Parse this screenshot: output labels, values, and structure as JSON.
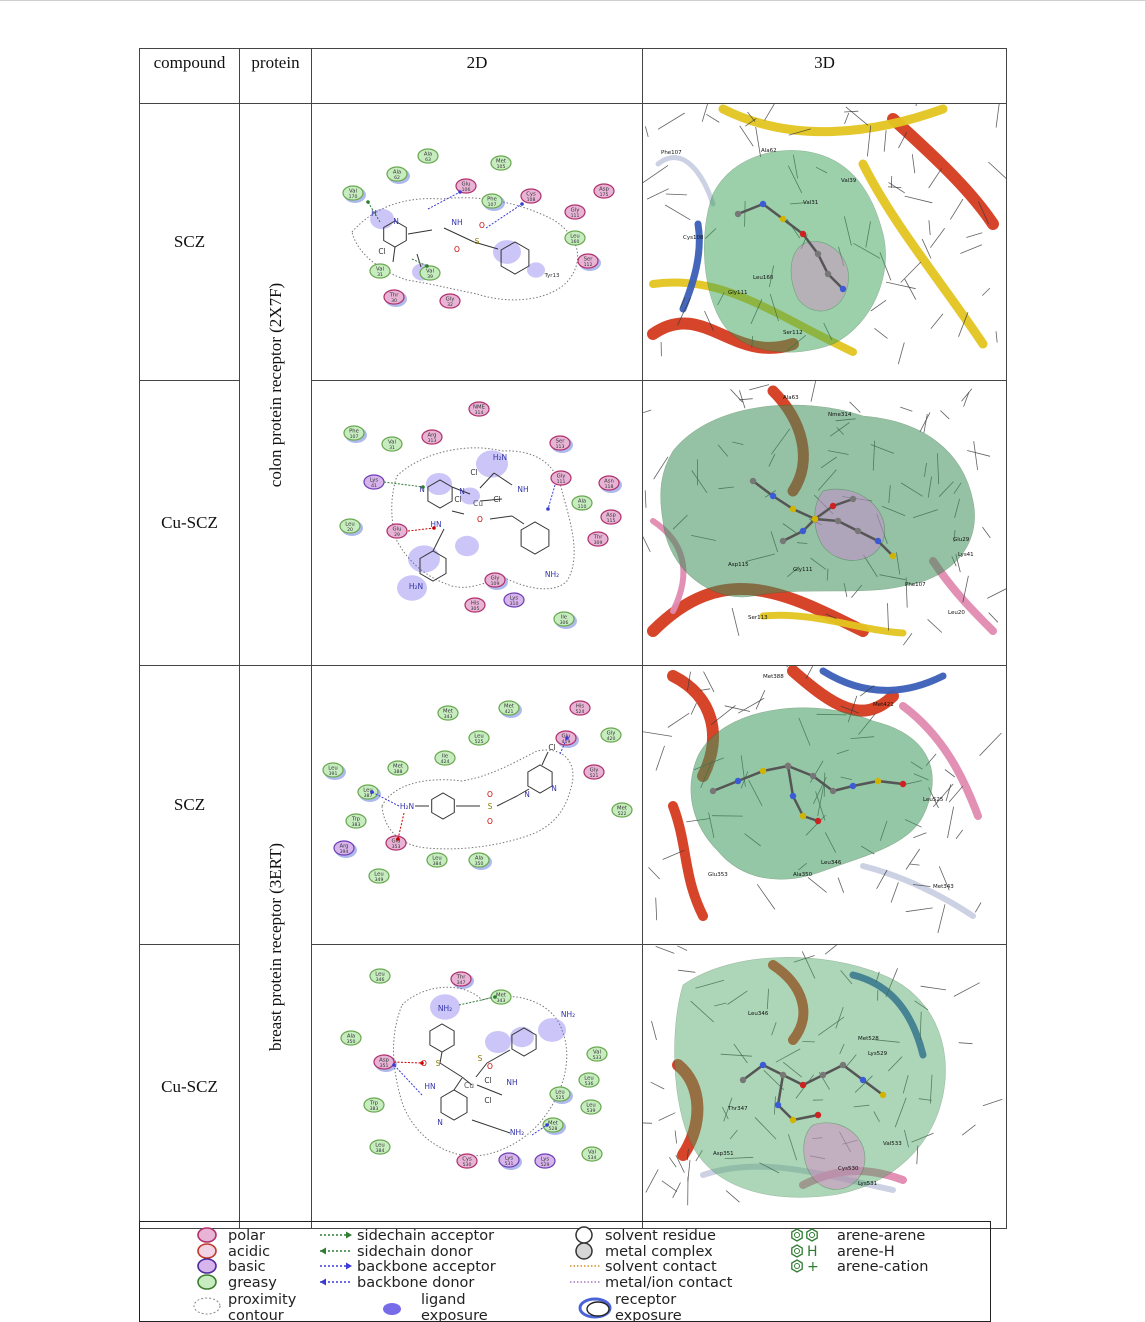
{
  "table": {
    "headers": {
      "compound": "compound",
      "protein": "protein",
      "d2": "2D",
      "d3": "3D"
    },
    "groups": [
      {
        "protein": "colon protein receptor  (2X7F)",
        "rows": [
          {
            "compound": "SCZ"
          },
          {
            "compound": "Cu-SCZ"
          }
        ]
      },
      {
        "protein": "breast protein receptor (3ERT)",
        "rows": [
          {
            "compound": "SCZ"
          },
          {
            "compound": "Cu-SCZ"
          }
        ]
      }
    ]
  },
  "diagrams": {
    "colon_scz": {
      "residues": [
        {
          "n": "Ala",
          "d": "63",
          "c": "#c6ecc0"
        },
        {
          "n": "Ala",
          "d": "62",
          "c": "#c6ecc0"
        },
        {
          "n": "Met",
          "d": "105",
          "c": "#c6ecc0"
        },
        {
          "n": "Glu",
          "d": "106",
          "c": "#e7b4d6"
        },
        {
          "n": "Phe",
          "d": "107",
          "c": "#c6ecc0"
        },
        {
          "n": "Cys",
          "d": "108",
          "c": "#e7b4d6"
        },
        {
          "n": "Asp",
          "d": "175",
          "c": "#e7b4d6"
        },
        {
          "n": "Val",
          "d": "170",
          "c": "#c6ecc0"
        },
        {
          "n": "Gly",
          "d": "111",
          "c": "#e7b4d6"
        },
        {
          "n": "Leu",
          "d": "160",
          "c": "#c6ecc0"
        },
        {
          "n": "Ser",
          "d": "112",
          "c": "#e7b4d6"
        },
        {
          "n": "Val",
          "d": "31",
          "c": "#c6ecc0"
        },
        {
          "n": "Val",
          "d": "39",
          "c": "#c6ecc0"
        },
        {
          "n": "Thr",
          "d": "30",
          "c": "#e7b4d6"
        },
        {
          "n": "Gly",
          "d": "32",
          "c": "#e7b4d6"
        }
      ],
      "atoms": {
        "h1": "H",
        "n1": "N",
        "cl": "Cl",
        "nh": "NH",
        "s": "S",
        "o": "O",
        "tail": "Tyr13"
      }
    },
    "colon_cuscz": {
      "residues": [
        {
          "n": "NME",
          "d": "314",
          "c": "#e7b4d6"
        },
        {
          "n": "Phe",
          "d": "107",
          "c": "#c6ecc0"
        },
        {
          "n": "Arg",
          "d": "313",
          "c": "#e7b4d6"
        },
        {
          "n": "Val",
          "d": "31",
          "c": "#c6ecc0"
        },
        {
          "n": "Ser",
          "d": "113",
          "c": "#e7b4d6"
        },
        {
          "n": "Lys",
          "d": "41",
          "c": "#d8b4ec"
        },
        {
          "n": "Gly",
          "d": "111",
          "c": "#e7b4d6"
        },
        {
          "n": "Asn",
          "d": "118",
          "c": "#e7b4d6"
        },
        {
          "n": "Ala",
          "d": "110",
          "c": "#c6ecc0"
        },
        {
          "n": "Asp",
          "d": "115",
          "c": "#e7b4d6"
        },
        {
          "n": "Leu",
          "d": "20",
          "c": "#c6ecc0"
        },
        {
          "n": "Glu",
          "d": "29",
          "c": "#e7b4d6"
        },
        {
          "n": "Thr",
          "d": "309",
          "c": "#e7b4d6"
        },
        {
          "n": "Gly",
          "d": "109",
          "c": "#e7b4d6"
        },
        {
          "n": "His",
          "d": "305",
          "c": "#e7b4d6"
        },
        {
          "n": "Lys",
          "d": "310",
          "c": "#d8b4ec"
        },
        {
          "n": "Ile",
          "d": "306",
          "c": "#c6ecc0"
        }
      ],
      "atoms": {
        "h2n": "H₂N",
        "cl1": "Cl",
        "nh": "NH",
        "cu": "Cu",
        "cl2": "Cl",
        "cl3": "Cl",
        "hn": "HN",
        "o": "O",
        "nh2": "NH₂",
        "h2n2": "H₂N",
        "n": "N"
      }
    },
    "breast_scz": {
      "residues": [
        {
          "n": "Met",
          "d": "343",
          "c": "#c6ecc0"
        },
        {
          "n": "Met",
          "d": "421",
          "c": "#c6ecc0"
        },
        {
          "n": "His",
          "d": "524",
          "c": "#e7b4d6"
        },
        {
          "n": "Leu",
          "d": "525",
          "c": "#c6ecc0"
        },
        {
          "n": "Glu",
          "d": "419",
          "c": "#e7b4d6"
        },
        {
          "n": "Gly",
          "d": "420",
          "c": "#c6ecc0"
        },
        {
          "n": "Ile",
          "d": "424",
          "c": "#c6ecc0"
        },
        {
          "n": "Leu",
          "d": "391",
          "c": "#c6ecc0"
        },
        {
          "n": "Met",
          "d": "388",
          "c": "#c6ecc0"
        },
        {
          "n": "Gly",
          "d": "521",
          "c": "#e7b4d6"
        },
        {
          "n": "Leu",
          "d": "387",
          "c": "#c6ecc0"
        },
        {
          "n": "Met",
          "d": "522",
          "c": "#c6ecc0"
        },
        {
          "n": "Trp",
          "d": "383",
          "c": "#c6ecc0"
        },
        {
          "n": "Arg",
          "d": "394",
          "c": "#d8b4ec"
        },
        {
          "n": "Glu",
          "d": "353",
          "c": "#e7b4d6"
        },
        {
          "n": "Leu",
          "d": "384",
          "c": "#c6ecc0"
        },
        {
          "n": "Ala",
          "d": "350",
          "c": "#c6ecc0"
        },
        {
          "n": "Leu",
          "d": "349",
          "c": "#c6ecc0"
        }
      ],
      "atoms": {
        "cl": "Cl",
        "n1": "N",
        "n2": "N",
        "h2n": "H₂N",
        "s": "S",
        "o": "O"
      }
    },
    "breast_cuscz": {
      "residues": [
        {
          "n": "Leu",
          "d": "346",
          "c": "#c6ecc0"
        },
        {
          "n": "Thr",
          "d": "347",
          "c": "#e7b4d6"
        },
        {
          "n": "Met",
          "d": "343",
          "c": "#c6ecc0"
        },
        {
          "n": "Ala",
          "d": "350",
          "c": "#c6ecc0"
        },
        {
          "n": "Asp",
          "d": "351",
          "c": "#e7b4d6"
        },
        {
          "n": "Val",
          "d": "533",
          "c": "#c6ecc0"
        },
        {
          "n": "Leu",
          "d": "536",
          "c": "#c6ecc0"
        },
        {
          "n": "Leu",
          "d": "525",
          "c": "#c6ecc0"
        },
        {
          "n": "Trp",
          "d": "383",
          "c": "#c6ecc0"
        },
        {
          "n": "Leu",
          "d": "539",
          "c": "#c6ecc0"
        },
        {
          "n": "Met",
          "d": "528",
          "c": "#c6ecc0"
        },
        {
          "n": "Leu",
          "d": "384",
          "c": "#c6ecc0"
        },
        {
          "n": "Cys",
          "d": "530",
          "c": "#e7b4d6"
        },
        {
          "n": "Lys",
          "d": "531",
          "c": "#d8b4ec"
        },
        {
          "n": "Lys",
          "d": "529",
          "c": "#d8b4ec"
        },
        {
          "n": "Val",
          "d": "534",
          "c": "#c6ecc0"
        }
      ],
      "atoms": {
        "nh2a": "NH₂",
        "nh2b": "NH₂",
        "nh2c": "NH₂",
        "s1": "S",
        "s2": "S",
        "o": "O",
        "cu": "Cu",
        "cl1": "Cl",
        "cl2": "Cl",
        "hn": "HN",
        "nh": "NH",
        "n": "N"
      }
    }
  },
  "structures": {
    "colon_scz": [
      "Phe107",
      "Ala62",
      "Val39",
      "Val31",
      "Cys108",
      "Leu160",
      "Gly111",
      "Ser112"
    ],
    "colon_cuscz": [
      "Ala63",
      "Nme314",
      "Asp115",
      "Gly111",
      "Ser113",
      "Glu29",
      "Lys41",
      "Phe107",
      "Leu20"
    ],
    "breast_scz": [
      "Met388",
      "Met421",
      "Leu525",
      "Leu346",
      "Ala350",
      "Glu353",
      "Met343"
    ],
    "breast_cuscz": [
      "Leu346",
      "Thr347",
      "Met528",
      "Lys529",
      "Asp351",
      "Val533",
      "Cys530",
      "Lys531"
    ]
  },
  "legend": {
    "items": [
      {
        "text": "polar",
        "sym": "polar"
      },
      {
        "text": "acidic",
        "sym": "acidic"
      },
      {
        "text": "basic",
        "sym": "basic"
      },
      {
        "text": "greasy",
        "sym": "greasy"
      },
      {
        "text": "proximity\ncontour",
        "sym": "contour"
      },
      {
        "text": "sidechain acceptor",
        "sym": "sc_acc"
      },
      {
        "text": "sidechain donor",
        "sym": "sc_don"
      },
      {
        "text": "backbone acceptor",
        "sym": "bb_acc"
      },
      {
        "text": "backbone donor",
        "sym": "bb_don"
      },
      {
        "text": "ligand\nexposure",
        "sym": "lig_exp"
      },
      {
        "text": "solvent residue",
        "sym": "solv_res"
      },
      {
        "text": "metal complex",
        "sym": "metal_cx"
      },
      {
        "text": "solvent contact",
        "sym": "solv_ct"
      },
      {
        "text": "metal/ion contact",
        "sym": "metal_ct"
      },
      {
        "text": "receptor\nexposure",
        "sym": "rec_exp"
      },
      {
        "text": "arene-arene",
        "sym": "arene_arene"
      },
      {
        "text": "arene-H",
        "sym": "arene_h"
      },
      {
        "text": "arene-cation",
        "sym": "arene_cat"
      }
    ],
    "colors": {
      "polar": "#e7b4d6",
      "acidic": "#e7b4d6",
      "basic": "#d8b4ec",
      "greasy": "#c6ecc0",
      "sc": "#2e7d32",
      "bb": "#3b3bd6"
    }
  }
}
